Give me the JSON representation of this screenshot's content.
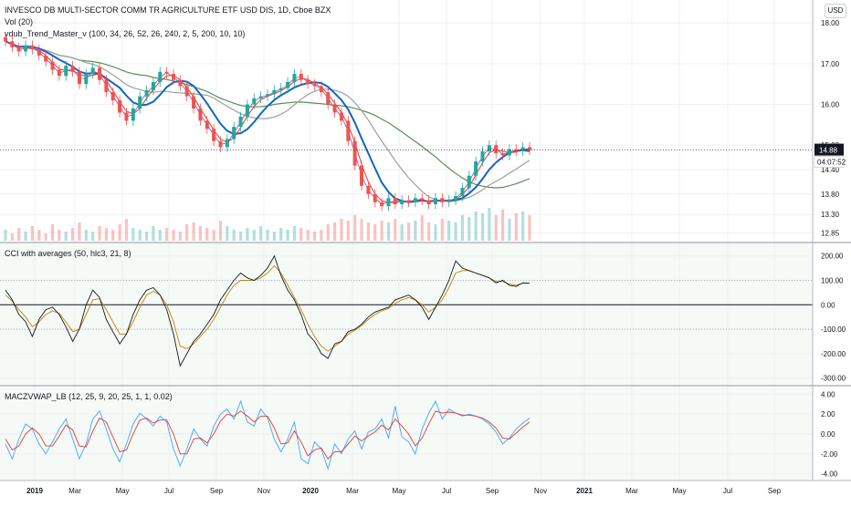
{
  "legend": {
    "title": "INVESCO DB MULTI-SECTOR COMM TR AGRICULTURE ETF USD DIS, 1D, Cboe BZX",
    "vol": "Vol (20)",
    "trend": "vdub_Trend_Master_v (100, 34, 26, 52, 26, 240, 2, 5, 200, 10, 10)",
    "cci": "CCI with averages (50, hlc3, 21, 8)",
    "macz": "MACZVWAP_LB (12, 25, 9, 20, 25, 1, 1, 0.02)"
  },
  "currency": "USD",
  "colors": {
    "up": "#26a69a",
    "down": "#ef5350",
    "ma_blue": "#1565c0",
    "ma_green": "#5b8c5a",
    "ma_gray": "#9e9e9e",
    "ma_red": "#e53935",
    "ma_purple": "#7e57c2",
    "cci_line": "#131722",
    "cci_avg": "#b8860b",
    "macz_blue": "#42a5f5",
    "macz_red": "#e53935",
    "last_price_bg": "#131722"
  },
  "chart_data": [
    {
      "id": "price",
      "type": "candlestick",
      "ylim": [
        12.7,
        18.25
      ],
      "y_ticks": [
        "18.00",
        "17.00",
        "16.00",
        "15.00",
        "14.40",
        "13.80",
        "13.30",
        "12.85"
      ],
      "y_tick_values": [
        18.0,
        17.0,
        16.0,
        15.0,
        14.4,
        13.8,
        13.3,
        12.85
      ],
      "last_price": "14.88",
      "last_price_value": 14.88,
      "countdown": "04:07:52",
      "close_series": [
        17.55,
        17.4,
        17.3,
        17.45,
        17.35,
        17.2,
        17.05,
        16.85,
        16.7,
        16.95,
        16.8,
        16.5,
        16.75,
        16.9,
        16.6,
        16.3,
        16.1,
        15.8,
        15.6,
        15.9,
        16.2,
        16.35,
        16.55,
        16.8,
        16.75,
        16.6,
        16.45,
        16.2,
        15.9,
        15.6,
        15.4,
        15.1,
        14.95,
        15.15,
        15.45,
        15.7,
        16.0,
        16.15,
        16.2,
        16.25,
        16.35,
        16.4,
        16.55,
        16.75,
        16.6,
        16.5,
        16.45,
        16.3,
        16.0,
        15.8,
        15.6,
        15.1,
        14.5,
        14.0,
        13.8,
        13.6,
        13.5,
        13.7,
        13.55,
        13.65,
        13.6,
        13.7,
        13.65,
        13.55,
        13.7,
        13.6,
        13.65,
        13.75,
        13.95,
        14.25,
        14.6,
        14.85,
        15.0,
        14.8,
        14.75,
        14.9,
        14.85,
        14.95,
        14.88
      ],
      "volume": [
        0.3,
        0.2,
        0.35,
        0.25,
        0.4,
        0.3,
        0.2,
        0.45,
        0.3,
        0.25,
        0.35,
        0.5,
        0.3,
        0.25,
        0.4,
        0.35,
        0.3,
        0.45,
        0.6,
        0.35,
        0.3,
        0.25,
        0.4,
        0.3,
        0.35,
        0.3,
        0.25,
        0.45,
        0.5,
        0.4,
        0.35,
        0.3,
        0.55,
        0.4,
        0.3,
        0.25,
        0.35,
        0.3,
        0.4,
        0.3,
        0.25,
        0.35,
        0.3,
        0.4,
        0.35,
        0.3,
        0.25,
        0.3,
        0.45,
        0.5,
        0.6,
        0.55,
        0.7,
        0.6,
        0.5,
        0.45,
        0.55,
        0.5,
        0.6,
        0.45,
        0.5,
        0.55,
        0.7,
        0.5,
        0.45,
        0.6,
        0.55,
        0.5,
        0.7,
        0.65,
        0.8,
        0.75,
        0.9,
        0.7,
        0.85,
        0.6,
        0.75,
        0.8,
        0.7
      ]
    },
    {
      "id": "cci",
      "type": "line",
      "ylim": [
        -320,
        240
      ],
      "y_ticks": [
        "200.00",
        "100.00",
        "0.00",
        "-100.00",
        "-200.00",
        "-300.00"
      ],
      "y_tick_values": [
        200,
        100,
        0,
        -100,
        -200,
        -300
      ],
      "levels": [
        100,
        0,
        -100
      ],
      "cci": [
        60,
        20,
        -40,
        -70,
        -130,
        -60,
        -20,
        -10,
        -40,
        -90,
        -150,
        -100,
        0,
        60,
        30,
        -60,
        -110,
        -160,
        -120,
        -40,
        20,
        60,
        70,
        40,
        -20,
        -120,
        -250,
        -200,
        -150,
        -120,
        -80,
        -40,
        20,
        60,
        100,
        130,
        110,
        100,
        120,
        150,
        200,
        120,
        60,
        20,
        -40,
        -120,
        -150,
        -200,
        -220,
        -160,
        -150,
        -110,
        -100,
        -80,
        -50,
        -30,
        -20,
        -10,
        20,
        30,
        40,
        20,
        -10,
        -60,
        -10,
        40,
        100,
        180,
        150,
        140,
        130,
        120,
        110,
        90,
        100,
        80,
        75,
        90,
        88
      ],
      "avg": [
        40,
        15,
        -20,
        -50,
        -90,
        -70,
        -40,
        -25,
        -35,
        -70,
        -110,
        -100,
        -40,
        20,
        25,
        -20,
        -70,
        -120,
        -120,
        -70,
        -10,
        40,
        55,
        40,
        0,
        -70,
        -170,
        -180,
        -160,
        -130,
        -100,
        -60,
        -10,
        40,
        80,
        100,
        100,
        100,
        110,
        130,
        160,
        130,
        80,
        30,
        -20,
        -80,
        -130,
        -170,
        -190,
        -170,
        -150,
        -120,
        -105,
        -85,
        -60,
        -40,
        -25,
        -15,
        5,
        20,
        30,
        20,
        0,
        -30,
        -10,
        20,
        70,
        130,
        140,
        140,
        130,
        120,
        110,
        95,
        95,
        85,
        80,
        88,
        88
      ]
    },
    {
      "id": "macz",
      "type": "line",
      "ylim": [
        -4.4,
        4.4
      ],
      "y_ticks": [
        "4.00",
        "2.00",
        "0.00",
        "-2.00",
        "-4.00"
      ],
      "y_tick_values": [
        4,
        2,
        0,
        -2,
        -4
      ],
      "macz": [
        -1,
        -2.5,
        -0.5,
        1,
        0.5,
        -1,
        -2,
        -0.8,
        0.5,
        1.5,
        -0.5,
        -2.5,
        -1,
        1.5,
        2.3,
        0.5,
        -1.5,
        -2.8,
        -1,
        1,
        2.1,
        1.5,
        0.8,
        1.8,
        1.2,
        -1.5,
        -3.2,
        -1.5,
        0.5,
        -0.5,
        -1.2,
        0.8,
        2,
        2.5,
        1.5,
        3.3,
        1.2,
        0.8,
        2.5,
        1.6,
        -0.5,
        -1.8,
        -0.5,
        1.2,
        -2.5,
        -3,
        -0.8,
        -1.5,
        -3.5,
        -1,
        -2,
        -0.5,
        0.3,
        -1.5,
        0.2,
        0.5,
        1.5,
        -0.4,
        2.8,
        -0.3,
        -0.8,
        -2,
        0.5,
        2.1,
        3.3,
        1.5,
        2.5,
        2.1,
        1.8,
        2,
        1.8,
        1.5,
        1,
        0.2,
        -1,
        -0.4,
        0.5,
        1.1,
        1.6
      ],
      "signal": [
        -0.5,
        -1.6,
        -1.2,
        0,
        0.6,
        0,
        -1.2,
        -1.2,
        -0.2,
        0.9,
        0.4,
        -1.2,
        -1.3,
        0.3,
        1.6,
        1.2,
        -0.3,
        -1.8,
        -1.6,
        0,
        1.4,
        1.6,
        1.1,
        1.4,
        1.4,
        0,
        -2,
        -2,
        -0.5,
        -0.4,
        -0.9,
        0,
        1.3,
        2,
        1.8,
        2.3,
        1.8,
        1.2,
        1.8,
        1.8,
        0.6,
        -1,
        -0.9,
        0.3,
        -0.8,
        -2.2,
        -1.6,
        -1.4,
        -2.5,
        -1.8,
        -1.8,
        -1,
        -0.2,
        -0.7,
        -0.2,
        0.2,
        0.9,
        0.4,
        1.5,
        0.8,
        0,
        -1.2,
        -0.4,
        1,
        2.3,
        2.1,
        2.2,
        2.1,
        1.9,
        1.9,
        1.8,
        1.6,
        1.2,
        0.6,
        -0.4,
        -0.5,
        0.1,
        0.7,
        1.2
      ]
    }
  ],
  "x_axis": {
    "labels": [
      "2019",
      "Mar",
      "May",
      "Jul",
      "Sep",
      "Nov",
      "2020",
      "Mar",
      "May",
      "Jul",
      "Sep",
      "Nov",
      "2021",
      "Mar",
      "May",
      "Jul",
      "Sep"
    ],
    "bold": [
      "2019",
      "2020",
      "2021"
    ]
  }
}
